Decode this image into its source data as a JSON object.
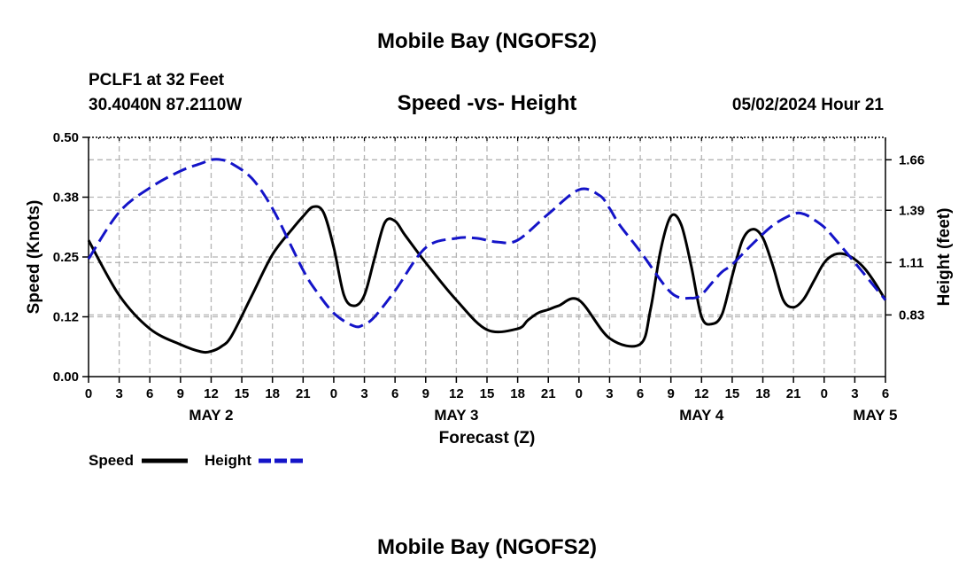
{
  "header": {
    "title": "Mobile Bay (NGOFS2)",
    "station": "PCLF1 at 32 Feet",
    "coords": "30.4040N  87.2110W",
    "subtitle": "Speed -vs- Height",
    "timestamp": "05/02/2024 Hour 21"
  },
  "footer": {
    "title": "Mobile Bay (NGOFS2)"
  },
  "legend": {
    "speed_label": "Speed",
    "height_label": "Height"
  },
  "colors": {
    "speed": "#000000",
    "height": "#1414c8",
    "grid": "#b4b4b4"
  },
  "chart_data": {
    "type": "line",
    "title": "Speed -vs- Height",
    "xlabel": "Forecast (Z)",
    "ylabel": "Speed (Knots)",
    "y2label": "Height (feet)",
    "x_unit": "hours since May 2 00Z",
    "xlim": [
      0,
      78
    ],
    "ylim": [
      0,
      0.5
    ],
    "y2lim": [
      0.5,
      1.78
    ],
    "x_ticks": [
      0,
      3,
      6,
      9,
      12,
      15,
      18,
      21,
      24,
      27,
      30,
      33,
      36,
      39,
      42,
      45,
      48,
      51,
      54,
      57,
      60,
      63,
      66,
      69,
      72,
      75,
      78
    ],
    "x_tick_labels": [
      "0",
      "3",
      "6",
      "9",
      "12",
      "15",
      "18",
      "21",
      "0",
      "3",
      "6",
      "9",
      "12",
      "15",
      "18",
      "21",
      "0",
      "3",
      "6",
      "9",
      "12",
      "15",
      "18",
      "21",
      "0",
      "3",
      "6"
    ],
    "y_ticks": [
      0,
      0.125,
      0.25,
      0.375,
      0.5
    ],
    "y_tick_labels": [
      "0.00",
      "0.12",
      "0.25",
      "0.38",
      "0.50"
    ],
    "y2_ticks": [
      0.83,
      1.11,
      1.39,
      1.66
    ],
    "y2_tick_labels": [
      "0.83",
      "1.11",
      "1.39",
      "1.66"
    ],
    "date_labels": [
      {
        "x": 12,
        "label": "MAY 2"
      },
      {
        "x": 36,
        "label": "MAY 3"
      },
      {
        "x": 60,
        "label": "MAY 4"
      },
      {
        "x": 77,
        "label": "MAY 5"
      }
    ],
    "series": [
      {
        "name": "Speed",
        "axis": "left",
        "style": "solid",
        "x": [
          0,
          3,
          6,
          9,
          11,
          12,
          13,
          14,
          16,
          18,
          20,
          21,
          22,
          23,
          24,
          25,
          26,
          27,
          28,
          29,
          30,
          31,
          33,
          36,
          39,
          42,
          43,
          44,
          45,
          46,
          48,
          51,
          54,
          55,
          56,
          57,
          58,
          59,
          60,
          61,
          62,
          63,
          64,
          65,
          66,
          67,
          68,
          69,
          70,
          71,
          72,
          73,
          74,
          75,
          76,
          77,
          78
        ],
        "y": [
          0.285,
          0.17,
          0.1,
          0.067,
          0.052,
          0.053,
          0.063,
          0.085,
          0.17,
          0.255,
          0.31,
          0.335,
          0.355,
          0.343,
          0.27,
          0.17,
          0.148,
          0.17,
          0.248,
          0.322,
          0.325,
          0.295,
          0.238,
          0.16,
          0.098,
          0.1,
          0.118,
          0.133,
          0.14,
          0.148,
          0.16,
          0.08,
          0.068,
          0.14,
          0.265,
          0.335,
          0.318,
          0.23,
          0.125,
          0.11,
          0.13,
          0.21,
          0.285,
          0.308,
          0.29,
          0.23,
          0.16,
          0.145,
          0.162,
          0.2,
          0.238,
          0.255,
          0.256,
          0.245,
          0.225,
          0.195,
          0.16
        ]
      },
      {
        "name": "Height",
        "axis": "right",
        "style": "dashed",
        "x": [
          0,
          3,
          6,
          9,
          11,
          12,
          13,
          14,
          16,
          18,
          20,
          21,
          22,
          24,
          26,
          27,
          28,
          30,
          33,
          36,
          38,
          40,
          42,
          45,
          48,
          50,
          51,
          52,
          54,
          57,
          59,
          60,
          61,
          62,
          63,
          65,
          67,
          69,
          70,
          71,
          72,
          73,
          75,
          78
        ],
        "y": [
          1.13,
          1.38,
          1.51,
          1.6,
          1.64,
          1.66,
          1.66,
          1.64,
          1.56,
          1.4,
          1.18,
          1.07,
          0.98,
          0.84,
          0.77,
          0.78,
          0.82,
          0.96,
          1.19,
          1.24,
          1.24,
          1.22,
          1.23,
          1.37,
          1.5,
          1.47,
          1.4,
          1.31,
          1.17,
          0.95,
          0.92,
          0.94,
          1.0,
          1.06,
          1.1,
          1.21,
          1.31,
          1.37,
          1.37,
          1.34,
          1.3,
          1.24,
          1.11,
          0.91
        ]
      }
    ]
  }
}
